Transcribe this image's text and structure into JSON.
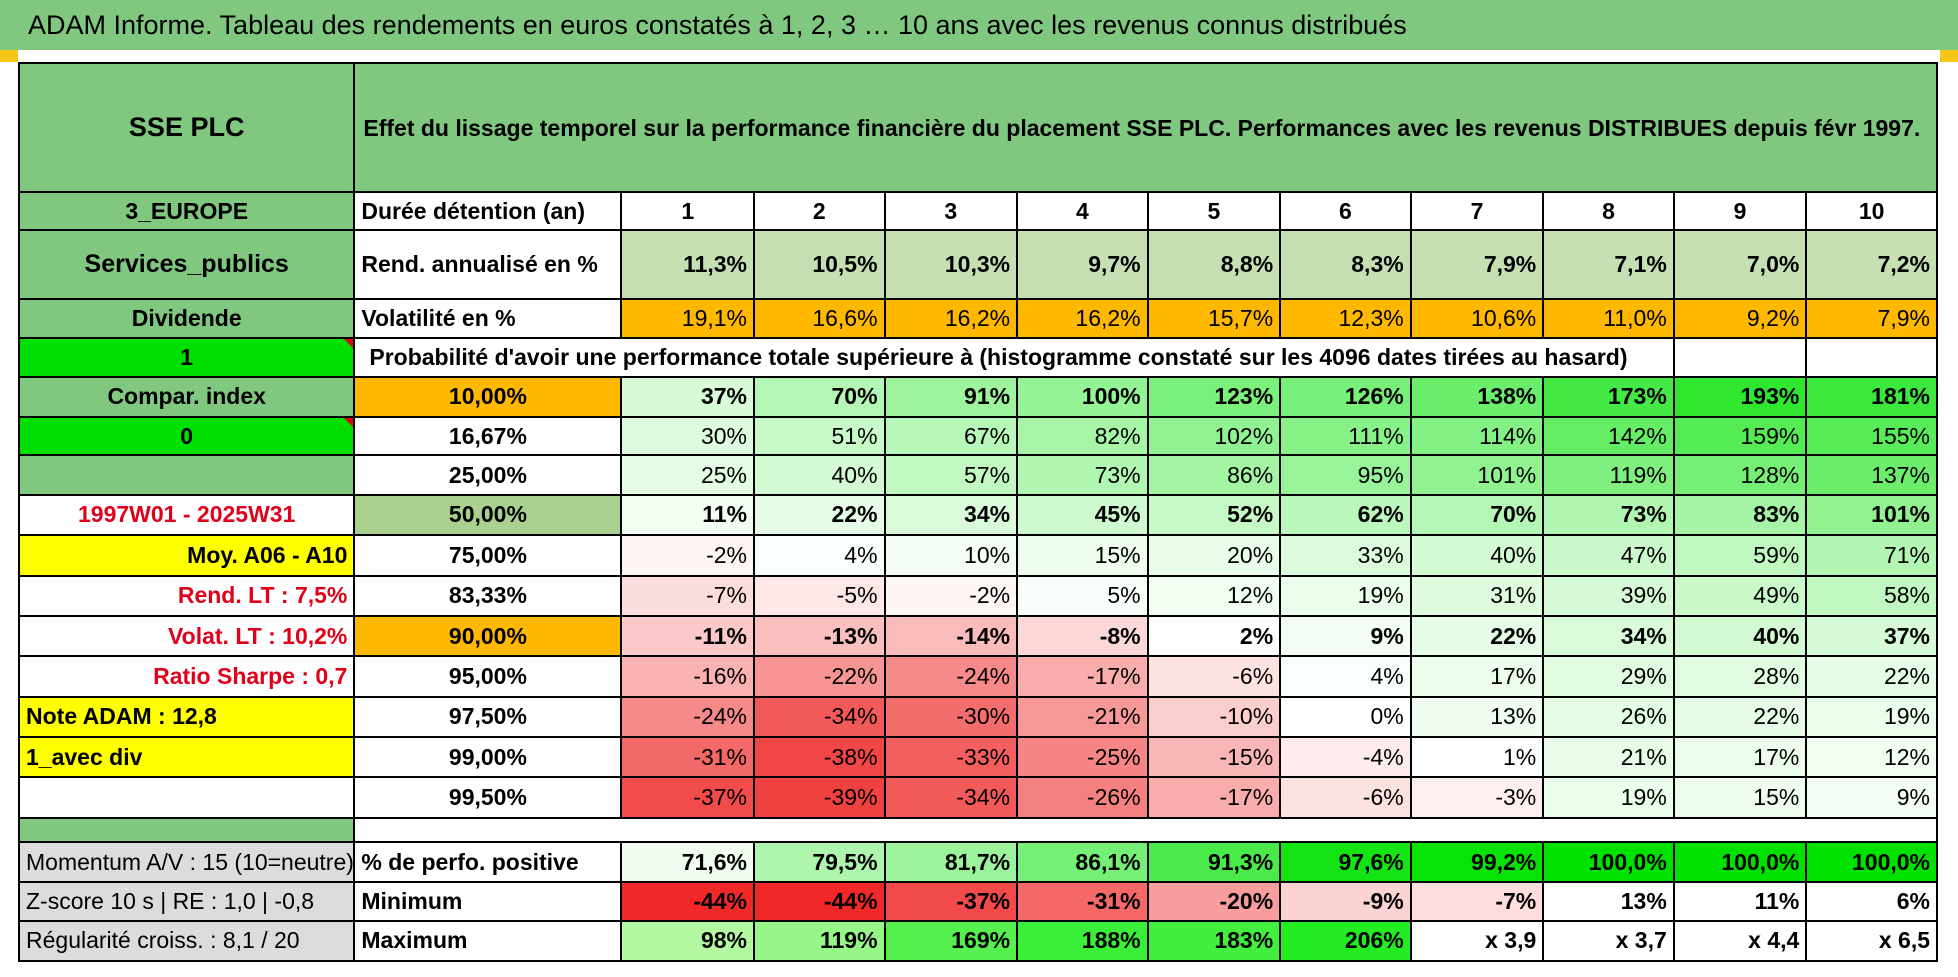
{
  "title": "ADAM Informe. Tableau des rendements en euros constatés à 1, 2, 3 … 10 ans avec les revenus connus distribués",
  "colors": {
    "green": "#80c880",
    "bright_green": "#00e000",
    "orange": "#ffb800",
    "yellow": "#ffff00",
    "red_text": "#e0001a"
  },
  "header": {
    "name": "SSE PLC",
    "description": "Effet du lissage temporel sur la performance financière du placement SSE PLC. Performances avec les revenus DISTRIBUES depuis févr 1997."
  },
  "left": {
    "region": "3_EUROPE",
    "sector": "Services_publics",
    "income": "Dividende",
    "val1": "1",
    "compar": "Compar. index",
    "val0": "0",
    "period": "1997W01 - 2025W31",
    "moy": "Moy. A06 - A10",
    "rend_lt": "Rend. LT :    7,5%",
    "volat_lt": "Volat. LT :    10,2%",
    "sharpe": "Ratio Sharpe :     0,7",
    "note": "Note ADAM : 12,8",
    "avec_div": "1_avec div",
    "momentum": "Momentum A/V : 15 (10=neutre)",
    "zscore": "Z-score 10 s | RE : 1,0 | -0,8",
    "regularite": "Régularité croiss. : 8,1 / 20"
  },
  "row_labels": {
    "duree": "Durée détention (an)",
    "rend": "Rend. annualisé en %",
    "vol": "Volatilité en %",
    "prob": "Probabilité d'avoir une performance totale supérieure à (histogramme constaté sur les 4096 dates tirées au hasard)",
    "pos": "% de perfo. positive",
    "min": "Minimum",
    "max": "Maximum"
  },
  "years": [
    "1",
    "2",
    "3",
    "4",
    "5",
    "6",
    "7",
    "8",
    "9",
    "10"
  ],
  "rend": [
    "11,3%",
    "10,5%",
    "10,3%",
    "9,7%",
    "8,8%",
    "8,3%",
    "7,9%",
    "7,1%",
    "7,0%",
    "7,2%"
  ],
  "vol": [
    "19,1%",
    "16,6%",
    "16,2%",
    "16,2%",
    "15,7%",
    "12,3%",
    "10,6%",
    "11,0%",
    "9,2%",
    "7,9%"
  ],
  "quantiles": [
    {
      "p": "10,00%",
      "v": [
        "37%",
        "70%",
        "91%",
        "100%",
        "123%",
        "126%",
        "138%",
        "173%",
        "193%",
        "181%"
      ]
    },
    {
      "p": "16,67%",
      "v": [
        "30%",
        "51%",
        "67%",
        "82%",
        "102%",
        "111%",
        "114%",
        "142%",
        "159%",
        "155%"
      ]
    },
    {
      "p": "25,00%",
      "v": [
        "25%",
        "40%",
        "57%",
        "73%",
        "86%",
        "95%",
        "101%",
        "119%",
        "128%",
        "137%"
      ]
    },
    {
      "p": "50,00%",
      "v": [
        "11%",
        "22%",
        "34%",
        "45%",
        "52%",
        "62%",
        "70%",
        "73%",
        "83%",
        "101%"
      ]
    },
    {
      "p": "75,00%",
      "v": [
        "-2%",
        "4%",
        "10%",
        "15%",
        "20%",
        "33%",
        "40%",
        "47%",
        "59%",
        "71%"
      ]
    },
    {
      "p": "83,33%",
      "v": [
        "-7%",
        "-5%",
        "-2%",
        "5%",
        "12%",
        "19%",
        "31%",
        "39%",
        "49%",
        "58%"
      ]
    },
    {
      "p": "90,00%",
      "v": [
        "-11%",
        "-13%",
        "-14%",
        "-8%",
        "2%",
        "9%",
        "22%",
        "34%",
        "40%",
        "37%"
      ]
    },
    {
      "p": "95,00%",
      "v": [
        "-16%",
        "-22%",
        "-24%",
        "-17%",
        "-6%",
        "4%",
        "17%",
        "29%",
        "28%",
        "22%"
      ]
    },
    {
      "p": "97,50%",
      "v": [
        "-24%",
        "-34%",
        "-30%",
        "-21%",
        "-10%",
        "0%",
        "13%",
        "26%",
        "22%",
        "19%"
      ]
    },
    {
      "p": "99,00%",
      "v": [
        "-31%",
        "-38%",
        "-33%",
        "-25%",
        "-15%",
        "-4%",
        "1%",
        "21%",
        "17%",
        "12%"
      ]
    },
    {
      "p": "99,50%",
      "v": [
        "-37%",
        "-39%",
        "-34%",
        "-26%",
        "-17%",
        "-6%",
        "-3%",
        "19%",
        "15%",
        "9%"
      ]
    }
  ],
  "positive": [
    "71,6%",
    "79,5%",
    "81,7%",
    "86,1%",
    "91,3%",
    "97,6%",
    "99,2%",
    "100,0%",
    "100,0%",
    "100,0%"
  ],
  "minimum": [
    "-44%",
    "-44%",
    "-37%",
    "-31%",
    "-20%",
    "-9%",
    "-7%",
    "13%",
    "11%",
    "6%"
  ],
  "maximum": [
    "98%",
    "119%",
    "169%",
    "188%",
    "183%",
    "206%",
    "x 3,9",
    "x 3,7",
    "x 4,4",
    "x 6,5"
  ]
}
